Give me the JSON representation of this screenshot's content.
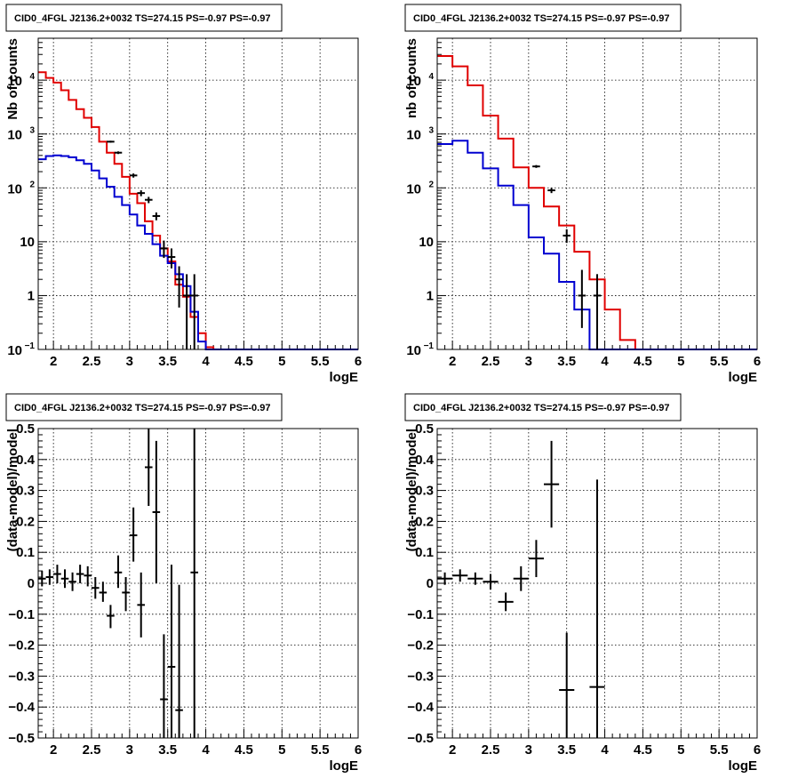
{
  "chart_data": [
    {
      "type": "histogram",
      "title": "CID0_4FGL J2136.2+0032 TS=274.15 PS=-0.97 PS=-0.97",
      "xlabel": "logE",
      "ylabel": "Nb of counts",
      "xlim": [
        1.8,
        6.0
      ],
      "ylim": [
        0.1,
        60000
      ],
      "log_y": true,
      "grid": true,
      "x_ticks": [
        2,
        2.5,
        3,
        3.5,
        4,
        4.5,
        5,
        5.5,
        6
      ],
      "y_ticks": [
        {
          "v": 0.1,
          "t": "10^-1"
        },
        {
          "v": 1,
          "t": "1"
        },
        {
          "v": 10,
          "t": "10"
        },
        {
          "v": 100,
          "t": "10^2"
        },
        {
          "v": 1000,
          "t": "10^3"
        },
        {
          "v": 10000,
          "t": "10^4"
        }
      ],
      "bin_edges": [
        1.8,
        1.9,
        2.0,
        2.1,
        2.2,
        2.3,
        2.4,
        2.5,
        2.6,
        2.7,
        2.8,
        2.9,
        3.0,
        3.1,
        3.2,
        3.3,
        3.4,
        3.5,
        3.6,
        3.7,
        3.8,
        3.9,
        4.0,
        4.1,
        4.2,
        4.3,
        4.4,
        4.5,
        4.6,
        4.7,
        4.8,
        4.9,
        5.0,
        5.1,
        5.2,
        5.3,
        5.4,
        5.5,
        5.6,
        5.7,
        5.8,
        5.9,
        6.0
      ],
      "series": [
        {
          "name": "model_total",
          "color": "#e00000",
          "style": "step",
          "values": [
            14000,
            11000,
            9000,
            6500,
            4300,
            2900,
            2000,
            1350,
            720,
            450,
            280,
            160,
            78,
            52,
            24,
            13,
            7.5,
            4.3,
            1.6,
            0.95,
            0.4,
            0.2,
            0.11,
            0.1,
            0.1,
            0.1,
            0.1,
            0.1,
            0.1,
            0.1,
            0.1,
            0.1,
            0.1,
            0.1,
            0.1,
            0.1,
            0.1,
            0.1,
            0.1,
            0.1,
            0.1,
            0.1
          ]
        },
        {
          "name": "model_source",
          "color": "#0000d0",
          "style": "step",
          "values": [
            340,
            390,
            400,
            390,
            370,
            325,
            280,
            210,
            150,
            105,
            68,
            48,
            32,
            20,
            14,
            9,
            5.5,
            4,
            2.5,
            1.5,
            0.5,
            0.14,
            0.1,
            0.1,
            0.1,
            0.1,
            0.1,
            0.1,
            0.1,
            0.1,
            0.1,
            0.1,
            0.1,
            0.1,
            0.1,
            0.1,
            0.1,
            0.1,
            0.1,
            0.1,
            0.1,
            0.1
          ]
        },
        {
          "name": "data",
          "color": "#000000",
          "style": "errorbar",
          "points": [
            {
              "x": 2.75,
              "y": 720,
              "lo": 690,
              "hi": 750
            },
            {
              "x": 2.85,
              "y": 450,
              "lo": 425,
              "hi": 475
            },
            {
              "x": 3.05,
              "y": 170,
              "lo": 155,
              "hi": 185
            },
            {
              "x": 3.15,
              "y": 80,
              "lo": 70,
              "hi": 90
            },
            {
              "x": 3.25,
              "y": 60,
              "lo": 52,
              "hi": 68
            },
            {
              "x": 3.35,
              "y": 30,
              "lo": 25,
              "hi": 35
            },
            {
              "x": 3.45,
              "y": 7.5,
              "lo": 5,
              "hi": 10.5
            },
            {
              "x": 3.55,
              "y": 5.2,
              "lo": 3.2,
              "hi": 7.5
            },
            {
              "x": 3.65,
              "y": 2,
              "lo": 0.6,
              "hi": 3.5
            },
            {
              "x": 3.75,
              "y": 1,
              "lo": 0.1,
              "hi": 2.5
            },
            {
              "x": 3.85,
              "y": 1,
              "lo": 0.1,
              "hi": 2.5
            }
          ]
        }
      ]
    },
    {
      "type": "histogram",
      "title": "CID0_4FGL J2136.2+0032 TS=274.15 PS=-0.97 PS=-0.97",
      "xlabel": "logE",
      "ylabel": "nb of counts",
      "xlim": [
        1.8,
        6.0
      ],
      "ylim": [
        0.1,
        60000
      ],
      "log_y": true,
      "grid": true,
      "x_ticks": [
        2,
        2.5,
        3,
        3.5,
        4,
        4.5,
        5,
        5.5,
        6
      ],
      "y_ticks": [
        {
          "v": 0.1,
          "t": "10^-1"
        },
        {
          "v": 1,
          "t": "1"
        },
        {
          "v": 10,
          "t": "10"
        },
        {
          "v": 100,
          "t": "10^2"
        },
        {
          "v": 1000,
          "t": "10^3"
        },
        {
          "v": 10000,
          "t": "10^4"
        }
      ],
      "bin_edges": [
        1.8,
        2.0,
        2.2,
        2.4,
        2.6,
        2.8,
        3.0,
        3.2,
        3.4,
        3.6,
        3.8,
        4.0,
        4.2,
        4.4,
        4.6,
        4.8,
        5.0,
        5.2,
        5.4,
        5.6,
        5.8,
        6.0
      ],
      "series": [
        {
          "name": "model_total",
          "color": "#e00000",
          "style": "step",
          "values": [
            28000,
            18000,
            8000,
            2200,
            820,
            240,
            100,
            45,
            20,
            6.5,
            2,
            0.55,
            0.15,
            0.1,
            0.1,
            0.1,
            0.1,
            0.1,
            0.1,
            0.1,
            0.1
          ]
        },
        {
          "name": "model_source",
          "color": "#0000d0",
          "style": "step",
          "values": [
            650,
            750,
            450,
            230,
            110,
            48,
            12,
            6,
            1.8,
            0.55,
            0.1,
            0.1,
            0.1,
            0.1,
            0.1,
            0.1,
            0.1,
            0.1,
            0.1,
            0.1,
            0.1
          ]
        },
        {
          "name": "data",
          "color": "#000000",
          "style": "errorbar",
          "points": [
            {
              "x": 3.1,
              "y": 250,
              "lo": 235,
              "hi": 265
            },
            {
              "x": 3.3,
              "y": 90,
              "lo": 80,
              "hi": 100
            },
            {
              "x": 3.5,
              "y": 13,
              "lo": 9.5,
              "hi": 17
            },
            {
              "x": 3.7,
              "y": 1,
              "lo": 0.25,
              "hi": 3
            },
            {
              "x": 3.9,
              "y": 1,
              "lo": 0.1,
              "hi": 2.5
            }
          ]
        }
      ]
    },
    {
      "type": "scatter",
      "title": "CID0_4FGL J2136.2+0032 TS=274.15 PS=-0.97 PS=-0.97",
      "xlabel": "logE",
      "ylabel": "(data-model)/model",
      "xlim": [
        1.8,
        6.0
      ],
      "ylim": [
        -0.5,
        0.5
      ],
      "grid": true,
      "x_ticks": [
        2,
        2.5,
        3,
        3.5,
        4,
        4.5,
        5,
        5.5,
        6
      ],
      "y_ticks": [
        {
          "v": -0.5,
          "t": "−0.5"
        },
        {
          "v": -0.4,
          "t": "−0.4"
        },
        {
          "v": -0.3,
          "t": "−0.3"
        },
        {
          "v": -0.2,
          "t": "−0.2"
        },
        {
          "v": -0.1,
          "t": "−0.1"
        },
        {
          "v": 0,
          "t": "0"
        },
        {
          "v": 0.1,
          "t": "0.1"
        },
        {
          "v": 0.2,
          "t": "0.2"
        },
        {
          "v": 0.3,
          "t": "0.3"
        },
        {
          "v": 0.4,
          "t": "0.4"
        },
        {
          "v": 0.5,
          "t": "0.5"
        }
      ],
      "series": [
        {
          "name": "residuals",
          "color": "#000000",
          "style": "errorbar",
          "xerr": 0.05,
          "points": [
            {
              "x": 1.85,
              "y": 0.015,
              "lo": -0.01,
              "hi": 0.04
            },
            {
              "x": 1.95,
              "y": 0.02,
              "lo": -0.005,
              "hi": 0.045
            },
            {
              "x": 2.05,
              "y": 0.03,
              "lo": 0.0,
              "hi": 0.06
            },
            {
              "x": 2.15,
              "y": 0.015,
              "lo": -0.015,
              "hi": 0.045
            },
            {
              "x": 2.25,
              "y": 0.005,
              "lo": -0.025,
              "hi": 0.035
            },
            {
              "x": 2.35,
              "y": 0.03,
              "lo": 0.0,
              "hi": 0.06
            },
            {
              "x": 2.45,
              "y": 0.025,
              "lo": -0.01,
              "hi": 0.055
            },
            {
              "x": 2.55,
              "y": -0.015,
              "lo": -0.05,
              "hi": 0.02
            },
            {
              "x": 2.65,
              "y": -0.03,
              "lo": -0.06,
              "hi": 0.005
            },
            {
              "x": 2.75,
              "y": -0.105,
              "lo": -0.145,
              "hi": -0.07
            },
            {
              "x": 2.85,
              "y": 0.035,
              "lo": -0.015,
              "hi": 0.09
            },
            {
              "x": 2.95,
              "y": -0.03,
              "lo": -0.09,
              "hi": 0.02
            },
            {
              "x": 3.05,
              "y": 0.155,
              "lo": 0.07,
              "hi": 0.245
            },
            {
              "x": 3.15,
              "y": -0.07,
              "lo": -0.175,
              "hi": 0.035
            },
            {
              "x": 3.25,
              "y": 0.375,
              "lo": 0.25,
              "hi": 0.5
            },
            {
              "x": 3.35,
              "y": 0.23,
              "lo": 0.0,
              "hi": 0.46
            },
            {
              "x": 3.45,
              "y": -0.375,
              "lo": -0.5,
              "hi": -0.165
            },
            {
              "x": 3.55,
              "y": -0.27,
              "lo": -0.5,
              "hi": 0.06
            },
            {
              "x": 3.65,
              "y": -0.41,
              "lo": -0.5,
              "hi": -0.005
            },
            {
              "x": 3.85,
              "y": 0.035,
              "lo": -0.5,
              "hi": 0.5
            }
          ]
        }
      ]
    },
    {
      "type": "scatter",
      "title": "CID0_4FGL J2136.2+0032 TS=274.15 PS=-0.97 PS=-0.97",
      "xlabel": "logE",
      "ylabel": "(data-model)/model",
      "xlim": [
        1.8,
        6.0
      ],
      "ylim": [
        -0.5,
        0.5
      ],
      "grid": true,
      "x_ticks": [
        2,
        2.5,
        3,
        3.5,
        4,
        4.5,
        5,
        5.5,
        6
      ],
      "y_ticks": [
        {
          "v": -0.5,
          "t": "−0.5"
        },
        {
          "v": -0.4,
          "t": "−0.4"
        },
        {
          "v": -0.3,
          "t": "−0.3"
        },
        {
          "v": -0.2,
          "t": "−0.2"
        },
        {
          "v": -0.1,
          "t": "−0.1"
        },
        {
          "v": 0,
          "t": "0"
        },
        {
          "v": 0.1,
          "t": "0.1"
        },
        {
          "v": 0.2,
          "t": "0.2"
        },
        {
          "v": 0.3,
          "t": "0.3"
        },
        {
          "v": 0.4,
          "t": "0.4"
        },
        {
          "v": 0.5,
          "t": "0.5"
        }
      ],
      "series": [
        {
          "name": "residuals",
          "color": "#000000",
          "style": "errorbar",
          "xerr": 0.1,
          "points": [
            {
              "x": 1.9,
              "y": 0.015,
              "lo": -0.005,
              "hi": 0.035
            },
            {
              "x": 2.1,
              "y": 0.025,
              "lo": 0.005,
              "hi": 0.045
            },
            {
              "x": 2.3,
              "y": 0.015,
              "lo": -0.005,
              "hi": 0.035
            },
            {
              "x": 2.5,
              "y": 0.005,
              "lo": -0.02,
              "hi": 0.03
            },
            {
              "x": 2.7,
              "y": -0.06,
              "lo": -0.09,
              "hi": -0.03
            },
            {
              "x": 2.9,
              "y": 0.015,
              "lo": -0.025,
              "hi": 0.055
            },
            {
              "x": 3.1,
              "y": 0.08,
              "lo": 0.02,
              "hi": 0.14
            },
            {
              "x": 3.3,
              "y": 0.32,
              "lo": 0.18,
              "hi": 0.46
            },
            {
              "x": 3.5,
              "y": -0.345,
              "lo": -0.5,
              "hi": -0.16
            },
            {
              "x": 3.9,
              "y": -0.335,
              "lo": -0.5,
              "hi": 0.335
            }
          ]
        }
      ]
    }
  ]
}
